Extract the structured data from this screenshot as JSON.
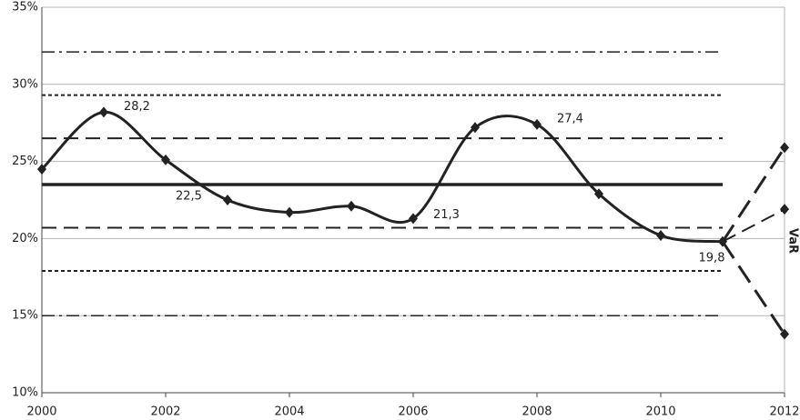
{
  "chart_data": {
    "type": "line",
    "x": [
      2000,
      2001,
      2002,
      2003,
      2004,
      2005,
      2006,
      2007,
      2008,
      2009,
      2010,
      2011
    ],
    "series": [
      {
        "color": "#222222",
        "values": [
          24.5,
          28.2,
          25.1,
          22.5,
          21.7,
          22.1,
          21.3,
          27.2,
          27.4,
          22.9,
          20.2,
          19.8
        ],
        "value_labels": [
          null,
          "28,2",
          null,
          "22,5",
          null,
          null,
          "21,3",
          null,
          "27,4",
          null,
          null,
          "19,8"
        ]
      }
    ],
    "reference_lines": [
      {
        "value": 32.1,
        "style": "dashdot"
      },
      {
        "value": 29.3,
        "style": "dotted"
      },
      {
        "value": 26.5,
        "style": "dashed"
      },
      {
        "value": 23.5,
        "style": "solid"
      },
      {
        "value": 20.7,
        "style": "dashed"
      },
      {
        "value": 17.9,
        "style": "dotted"
      },
      {
        "value": 15.0,
        "style": "dashdot"
      }
    ],
    "projections": {
      "x": 2012,
      "lines": [
        {
          "value": 25.9,
          "style": "longdash"
        },
        {
          "value": 21.9,
          "style": "dashed"
        },
        {
          "value": 13.8,
          "style": "longdash"
        }
      ]
    },
    "annotation": "VaR",
    "xlim": [
      2000,
      2012
    ],
    "xticks": [
      2000,
      2002,
      2004,
      2006,
      2008,
      2010,
      2012
    ],
    "ylim": [
      10,
      35
    ],
    "yticks": [
      {
        "value": 10,
        "label": "10%"
      },
      {
        "value": 15,
        "label": "15%"
      },
      {
        "value": 20,
        "label": "20%"
      },
      {
        "value": 25,
        "label": "25%"
      },
      {
        "value": 30,
        "label": "30%"
      },
      {
        "value": 35,
        "label": "35%"
      }
    ],
    "grid": true
  }
}
